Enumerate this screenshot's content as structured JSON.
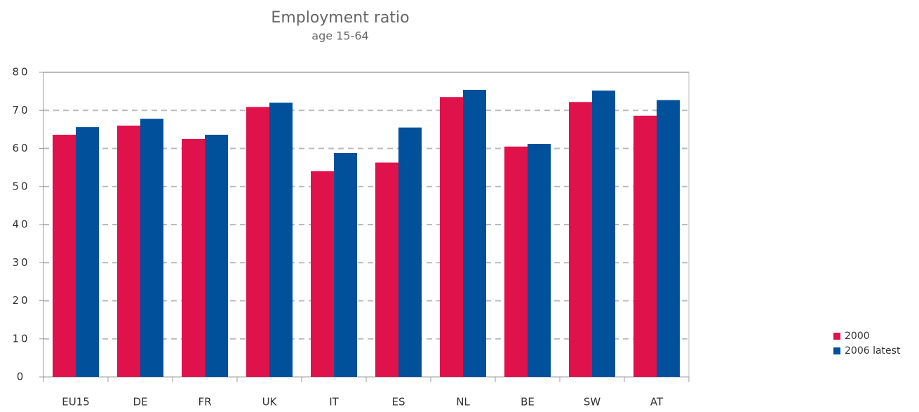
{
  "chart_data": {
    "type": "bar",
    "title": "Employment ratio",
    "subtitle": "age 15-64",
    "categories": [
      "EU15",
      "DE",
      "FR",
      "UK",
      "IT",
      "ES",
      "NL",
      "BE",
      "SW",
      "AT"
    ],
    "series": [
      {
        "name": "2000",
        "color": "#e0124b",
        "values": [
          63.6,
          66.0,
          62.5,
          70.9,
          54.0,
          56.3,
          73.5,
          60.5,
          72.2,
          68.6
        ]
      },
      {
        "name": "2006 latest",
        "color": "#00509b",
        "values": [
          65.6,
          67.8,
          63.6,
          72.0,
          58.8,
          65.5,
          75.4,
          61.2,
          75.2,
          72.7
        ]
      }
    ],
    "ylim": [
      0,
      80
    ],
    "yticks": [
      0,
      10,
      20,
      30,
      40,
      50,
      60,
      70,
      80
    ],
    "grid": true,
    "legend": "right"
  }
}
